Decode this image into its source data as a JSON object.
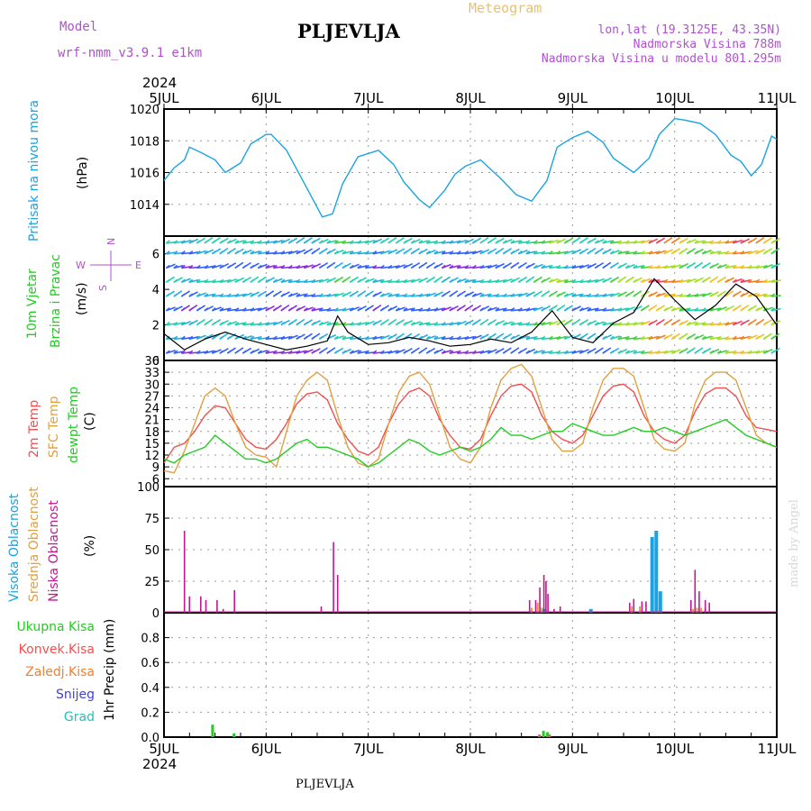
{
  "header": {
    "model_label": "Model",
    "model_name": "wrf-nmm_v3.9.1 e1km",
    "title": "PLJEVLJA",
    "meteogram": "Meteogram",
    "lonlat": "lon,lat (19.3125E, 43.35N)",
    "altitude": "Nadmorska Visina 788m",
    "model_altitude": "Nadmorska Visina u modelu 801.295m",
    "year": "2024",
    "footer_station": "PLJEVLJA",
    "credit": "made by Angel"
  },
  "colors": {
    "pressure": "#1aa3e0",
    "temp2m": "#f05050",
    "sfc": "#e0a040",
    "dewpt": "#22cc22",
    "high_cloud": "#1aa3e0",
    "mid_cloud": "#e0a040",
    "low_cloud": "#c01890",
    "total_precip": "#22cc22",
    "conv_precip": "#f05050",
    "frozen_precip": "#f08030",
    "snow": "#4040e0",
    "hail": "#20c0c0",
    "label_purple": "#b050d0",
    "meteogram": "#e8c070"
  },
  "x_axis": {
    "top_labels": [
      "5JUL",
      "6JUL",
      "7JUL",
      "8JUL",
      "9JUL",
      "10JUL",
      "11JUL"
    ],
    "bottom_labels": [
      "5JUL",
      "6JUL",
      "7JUL",
      "8JUL",
      "9JUL",
      "10JUL",
      "11JUL"
    ]
  },
  "panels": {
    "pressure": {
      "ylabel_color": "Pritisak na nivou mora",
      "unit": "(hPa)"
    },
    "wind": {
      "ylabel_a": "10m Vjetar",
      "ylabel_b": "Brzina i Pravac",
      "unit": "(m/s)",
      "compass_n": "N",
      "compass_s": "S",
      "compass_w": "W",
      "compass_e": "E"
    },
    "temp": {
      "label_2m": "2m Temp",
      "label_sfc": "SFC Temp",
      "label_dew": "dewpt Temp",
      "unit": "(C)"
    },
    "cloud": {
      "label_high": "Visoka Oblacnost",
      "label_mid": "Srednja Oblacnost",
      "label_low": "Niska Oblacnost",
      "unit": "(%)"
    },
    "precip": {
      "label_total": "Ukupna Kisa",
      "label_conv": "Konvek.Kisa",
      "label_frozen": "Zaledj.Kisa",
      "label_snow": "Snijeg",
      "label_hail": "Grad",
      "unit": "1hr Precip (mm)"
    }
  },
  "chart_data": [
    {
      "type": "line",
      "name": "pressure",
      "ylim": [
        1012,
        1020
      ],
      "yticks": [
        1014,
        1016,
        1018,
        1020
      ],
      "x": [
        0,
        0.1,
        0.2,
        0.25,
        0.35,
        0.5,
        0.6,
        0.75,
        0.85,
        1.0,
        1.05,
        1.2,
        1.4,
        1.55,
        1.65,
        1.75,
        1.9,
        2.1,
        2.25,
        2.35,
        2.5,
        2.6,
        2.75,
        2.85,
        2.95,
        3.1,
        3.3,
        3.45,
        3.6,
        3.75,
        3.85,
        4.0,
        4.15,
        4.3,
        4.4,
        4.6,
        4.75,
        4.85,
        5.0,
        5.1,
        5.25,
        5.4,
        5.55,
        5.65,
        5.75,
        5.85,
        5.95,
        6.0
      ],
      "y": [
        1015.5,
        1016.3,
        1016.8,
        1017.6,
        1017.3,
        1016.8,
        1016.0,
        1016.6,
        1017.8,
        1018.4,
        1018.4,
        1017.4,
        1015.0,
        1013.2,
        1013.4,
        1015.3,
        1017.0,
        1017.4,
        1016.5,
        1015.4,
        1014.3,
        1013.8,
        1014.9,
        1015.9,
        1016.4,
        1016.8,
        1015.6,
        1014.6,
        1014.2,
        1015.5,
        1017.6,
        1018.2,
        1018.6,
        1017.9,
        1016.9,
        1016.0,
        1016.9,
        1018.4,
        1019.4,
        1019.3,
        1019.1,
        1018.4,
        1017.1,
        1016.7,
        1015.8,
        1016.5,
        1018.3,
        1018.1
      ]
    },
    {
      "type": "line",
      "name": "wind",
      "ylim": [
        0,
        7
      ],
      "yticks": [
        0,
        2,
        4,
        6
      ],
      "x": [
        0,
        0.2,
        0.4,
        0.6,
        0.8,
        1.0,
        1.2,
        1.4,
        1.6,
        1.7,
        1.8,
        2.0,
        2.2,
        2.4,
        2.6,
        2.8,
        3.0,
        3.2,
        3.4,
        3.6,
        3.8,
        4.0,
        4.2,
        4.4,
        4.6,
        4.8,
        5.0,
        5.2,
        5.4,
        5.6,
        5.8,
        6.0
      ],
      "y": [
        1.5,
        0.6,
        1.2,
        1.6,
        1.2,
        0.9,
        0.6,
        0.8,
        1.1,
        2.5,
        1.6,
        0.9,
        1.0,
        1.3,
        1.1,
        0.8,
        0.9,
        1.2,
        1.0,
        1.6,
        2.8,
        1.3,
        1.0,
        2.1,
        2.7,
        4.6,
        3.4,
        2.3,
        3.1,
        4.3,
        3.6,
        2.0
      ]
    },
    {
      "type": "line",
      "name": "temperature",
      "ylim": [
        4,
        36
      ],
      "yticks": [
        6,
        9,
        12,
        15,
        18,
        21,
        24,
        27,
        30,
        33,
        36
      ],
      "x": [
        0,
        0.1,
        0.2,
        0.3,
        0.4,
        0.5,
        0.6,
        0.7,
        0.8,
        0.9,
        1.0,
        1.1,
        1.2,
        1.3,
        1.4,
        1.5,
        1.6,
        1.7,
        1.8,
        1.9,
        2.0,
        2.1,
        2.2,
        2.3,
        2.4,
        2.5,
        2.6,
        2.7,
        2.8,
        2.9,
        3.0,
        3.1,
        3.2,
        3.3,
        3.4,
        3.5,
        3.6,
        3.7,
        3.8,
        3.9,
        4.0,
        4.1,
        4.2,
        4.3,
        4.4,
        4.5,
        4.6,
        4.7,
        4.8,
        4.9,
        5.0,
        5.1,
        5.2,
        5.3,
        5.4,
        5.5,
        5.6,
        5.7,
        5.8,
        5.9,
        6.0
      ],
      "series": [
        {
          "name": "2m Temp",
          "values": [
            10,
            14,
            15,
            18,
            22,
            24.5,
            24,
            20,
            16,
            14,
            13.5,
            16,
            20,
            25,
            27.5,
            28,
            26,
            20,
            16,
            13,
            12,
            14,
            20,
            25,
            28,
            29,
            27,
            21,
            17,
            14,
            13.5,
            16,
            22,
            27,
            29.5,
            30,
            28,
            22,
            18,
            16,
            15,
            17,
            22,
            27,
            29.5,
            30,
            28,
            22,
            18,
            16,
            15,
            17,
            23,
            27.5,
            29,
            29,
            27,
            22,
            19,
            18.5,
            18
          ]
        },
        {
          "name": "SFC Temp",
          "values": [
            8,
            7.5,
            13,
            20,
            27,
            29,
            27,
            20,
            14,
            12,
            11.5,
            9,
            18,
            27,
            31,
            33,
            31,
            22,
            14,
            10,
            9,
            11,
            20,
            28,
            32,
            33,
            30,
            22,
            14,
            11,
            10,
            14,
            24,
            31,
            34,
            35,
            32,
            24,
            16,
            13,
            13,
            15,
            24,
            31,
            34,
            34,
            32,
            24,
            16,
            13.5,
            13,
            15,
            25,
            31,
            33,
            33,
            31,
            24,
            17,
            15,
            14
          ]
        },
        {
          "name": "dewpt Temp",
          "values": [
            11,
            10,
            12,
            13,
            14,
            17,
            15,
            13,
            11,
            11,
            10,
            11,
            13,
            15,
            16,
            14,
            14,
            13,
            12,
            11,
            9,
            10,
            12,
            14,
            16,
            15,
            13,
            12,
            13,
            14,
            13,
            14,
            16,
            19,
            17,
            17,
            16,
            17,
            18,
            18,
            20,
            19,
            18,
            17,
            17,
            18,
            19,
            18,
            18,
            19,
            18,
            17,
            18,
            19,
            20,
            21,
            19,
            17,
            16,
            15,
            14
          ]
        }
      ]
    },
    {
      "type": "bar",
      "name": "cloud cover",
      "ylim": [
        0,
        100
      ],
      "yticks": [
        0,
        25,
        50,
        75,
        100
      ],
      "series": [
        {
          "name": "Visoka Oblacnost",
          "bars": [
            [
              3.72,
              3
            ],
            [
              4.18,
              3
            ],
            [
              4.78,
              60
            ],
            [
              4.82,
              65
            ],
            [
              4.86,
              17
            ]
          ]
        },
        {
          "name": "Srednja Oblacnost",
          "bars": [
            [
              3.6,
              4
            ],
            [
              3.66,
              8
            ],
            [
              3.7,
              4
            ],
            [
              4.58,
              5
            ],
            [
              4.66,
              5
            ],
            [
              5.18,
              3
            ],
            [
              5.22,
              4
            ],
            [
              5.26,
              4
            ],
            [
              5.3,
              4
            ]
          ]
        },
        {
          "name": "Niska Oblacnost",
          "bars": [
            [
              0.2,
              65
            ],
            [
              0.25,
              13
            ],
            [
              0.36,
              13
            ],
            [
              0.41,
              10
            ],
            [
              0.52,
              10
            ],
            [
              0.58,
              3
            ],
            [
              0.69,
              18
            ],
            [
              1.54,
              5
            ],
            [
              1.66,
              56
            ],
            [
              1.7,
              30
            ],
            [
              3.58,
              10
            ],
            [
              3.64,
              10
            ],
            [
              3.68,
              20
            ],
            [
              3.72,
              30
            ],
            [
              3.74,
              25
            ],
            [
              3.76,
              15
            ],
            [
              3.82,
              3
            ],
            [
              3.88,
              5
            ],
            [
              4.56,
              8
            ],
            [
              4.6,
              11
            ],
            [
              4.68,
              9
            ],
            [
              4.72,
              9
            ],
            [
              5.16,
              10
            ],
            [
              5.2,
              34
            ],
            [
              5.24,
              17
            ],
            [
              5.3,
              10
            ],
            [
              5.34,
              8
            ]
          ]
        }
      ]
    },
    {
      "type": "bar",
      "name": "precipitation",
      "ylim": [
        0,
        1
      ],
      "yticks": [
        0.0,
        0.2,
        0.4,
        0.6,
        0.8
      ],
      "series": [
        {
          "name": "Ukupna Kisa",
          "bars": [
            [
              0.48,
              0.1
            ],
            [
              0.69,
              0.03
            ],
            [
              3.72,
              0.05
            ],
            [
              3.76,
              0.04
            ]
          ]
        },
        {
          "name": "Konvek.Kisa",
          "bars": [
            [
              3.78,
              0.02
            ],
            [
              3.68,
              0.02
            ]
          ]
        },
        {
          "name": "Zaledj.Kisa",
          "bars": []
        },
        {
          "name": "Snijeg",
          "bars": []
        },
        {
          "name": "Grad",
          "bars": []
        }
      ]
    }
  ]
}
